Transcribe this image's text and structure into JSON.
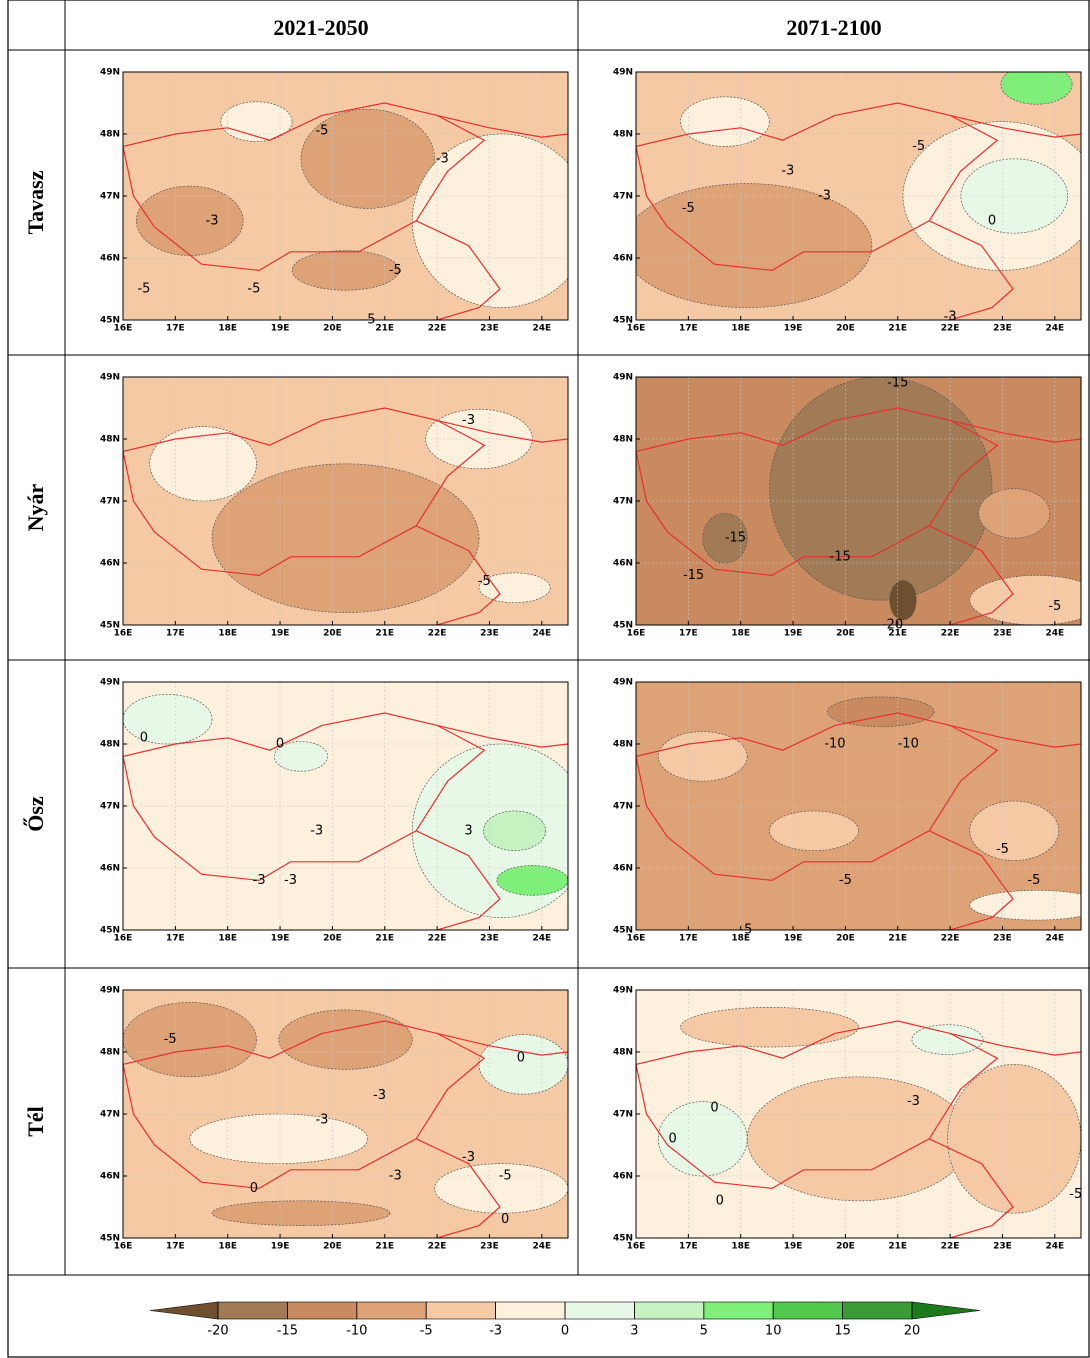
{
  "table": {
    "columns": [
      "2021-2050",
      "2071-2100"
    ],
    "rows": [
      {
        "label": "Tavasz",
        "panels": [
          {
            "contour_labels": [
              {
                "value": -5,
                "lon": 19.8,
                "lat": 48.05
              },
              {
                "value": -3,
                "lon": 22.1,
                "lat": 47.6
              },
              {
                "value": -3,
                "lon": 17.7,
                "lat": 46.6
              },
              {
                "value": -5,
                "lon": 21.2,
                "lat": 45.8
              },
              {
                "value": -5,
                "lon": 16.4,
                "lat": 45.5
              },
              {
                "value": -5,
                "lon": 18.5,
                "lat": 45.5
              },
              {
                "value": -5,
                "lon": 20.7,
                "lat": 45.0
              }
            ]
          },
          {
            "contour_labels": [
              {
                "value": -5,
                "lon": 21.4,
                "lat": 47.8
              },
              {
                "value": -3,
                "lon": 18.9,
                "lat": 47.4
              },
              {
                "value": -3,
                "lon": 19.6,
                "lat": 47.0
              },
              {
                "value": -5,
                "lon": 17.0,
                "lat": 46.8
              },
              {
                "value": 0,
                "lon": 22.8,
                "lat": 46.6
              },
              {
                "value": -3,
                "lon": 22.0,
                "lat": 45.05
              }
            ]
          }
        ]
      },
      {
        "label": "Nyár",
        "panels": [
          {
            "contour_labels": [
              {
                "value": -3,
                "lon": 22.6,
                "lat": 48.3
              },
              {
                "value": -5,
                "lon": 22.9,
                "lat": 45.7
              }
            ]
          },
          {
            "contour_labels": [
              {
                "value": -15,
                "lon": 21.0,
                "lat": 48.9
              },
              {
                "value": -15,
                "lon": 17.9,
                "lat": 46.4
              },
              {
                "value": -15,
                "lon": 19.9,
                "lat": 46.1
              },
              {
                "value": -15,
                "lon": 17.1,
                "lat": 45.8
              },
              {
                "value": -20,
                "lon": 20.9,
                "lat": 45.0
              },
              {
                "value": -5,
                "lon": 24.0,
                "lat": 45.3
              }
            ]
          }
        ]
      },
      {
        "label": "Ősz",
        "panels": [
          {
            "contour_labels": [
              {
                "value": 0,
                "lon": 16.4,
                "lat": 48.1
              },
              {
                "value": 0,
                "lon": 19.0,
                "lat": 48.0
              },
              {
                "value": -3,
                "lon": 19.7,
                "lat": 46.6
              },
              {
                "value": 3,
                "lon": 22.6,
                "lat": 46.6
              },
              {
                "value": -3,
                "lon": 18.6,
                "lat": 45.8
              },
              {
                "value": -3,
                "lon": 19.2,
                "lat": 45.8
              }
            ]
          },
          {
            "contour_labels": [
              {
                "value": -10,
                "lon": 19.8,
                "lat": 48.0
              },
              {
                "value": -10,
                "lon": 21.2,
                "lat": 48.0
              },
              {
                "value": -5,
                "lon": 23.0,
                "lat": 46.3
              },
              {
                "value": -5,
                "lon": 20.0,
                "lat": 45.8
              },
              {
                "value": -5,
                "lon": 23.6,
                "lat": 45.8
              },
              {
                "value": -5,
                "lon": 18.1,
                "lat": 45.0
              }
            ]
          }
        ]
      },
      {
        "label": "Tél",
        "panels": [
          {
            "contour_labels": [
              {
                "value": -5,
                "lon": 16.9,
                "lat": 48.2
              },
              {
                "value": 0,
                "lon": 23.6,
                "lat": 47.9
              },
              {
                "value": -3,
                "lon": 20.9,
                "lat": 47.3
              },
              {
                "value": -3,
                "lon": 19.8,
                "lat": 46.9
              },
              {
                "value": -3,
                "lon": 22.6,
                "lat": 46.3
              },
              {
                "value": -3,
                "lon": 21.2,
                "lat": 46.0
              },
              {
                "value": -5,
                "lon": 23.3,
                "lat": 46.0
              },
              {
                "value": 0,
                "lon": 18.5,
                "lat": 45.8
              },
              {
                "value": 0,
                "lon": 23.3,
                "lat": 45.3
              }
            ]
          },
          {
            "contour_labels": [
              {
                "value": -3,
                "lon": 21.3,
                "lat": 47.2
              },
              {
                "value": 0,
                "lon": 17.5,
                "lat": 47.1
              },
              {
                "value": 0,
                "lon": 16.7,
                "lat": 46.6
              },
              {
                "value": 0,
                "lon": 17.6,
                "lat": 45.6
              },
              {
                "value": -5,
                "lon": 24.4,
                "lat": 45.7
              }
            ]
          }
        ]
      }
    ]
  },
  "map": {
    "xlim": [
      16,
      24.5
    ],
    "ylim": [
      45,
      49
    ],
    "lon_ticks": [
      {
        "value": 16,
        "label": "16E"
      },
      {
        "value": 17,
        "label": "17E"
      },
      {
        "value": 18,
        "label": "18E"
      },
      {
        "value": 19,
        "label": "19E"
      },
      {
        "value": 20,
        "label": "20E"
      },
      {
        "value": 21,
        "label": "21E"
      },
      {
        "value": 22,
        "label": "22E"
      },
      {
        "value": 23,
        "label": "23E"
      },
      {
        "value": 24,
        "label": "24E"
      }
    ],
    "lat_ticks": [
      {
        "value": 45,
        "label": "45N"
      },
      {
        "value": 46,
        "label": "46N"
      },
      {
        "value": 47,
        "label": "47N"
      },
      {
        "value": 48,
        "label": "48N"
      },
      {
        "value": 49,
        "label": "49N"
      }
    ]
  },
  "colorbar": {
    "levels": [
      -20,
      -15,
      -10,
      -5,
      -3,
      0,
      3,
      5,
      10,
      15,
      20
    ],
    "colors": [
      "#6e5030",
      "#a07b55",
      "#c98a5f",
      "#dea277",
      "#f5c9a3",
      "#fdf0dd",
      "#e8f8e6",
      "#c6f2c2",
      "#7ef07a",
      "#52c84c",
      "#3a9c36",
      "#1c7a1a"
    ]
  }
}
